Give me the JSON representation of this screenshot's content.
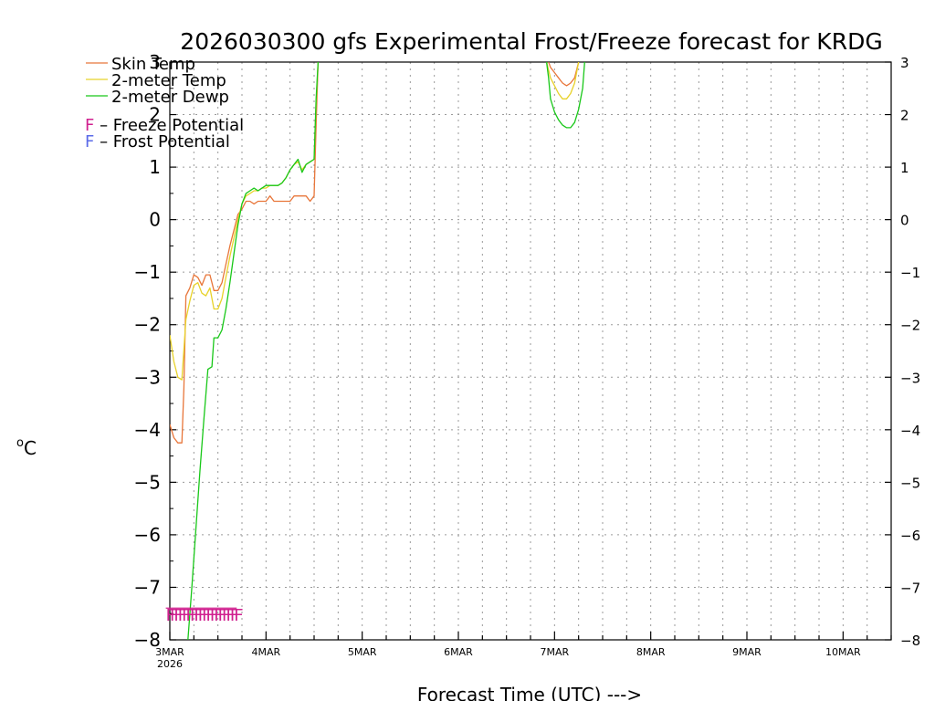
{
  "chart_data": {
    "type": "line",
    "title": "2026030300 gfs Experimental Frost/Freeze forecast for KRDG",
    "xlabel": "Forecast Time (UTC) --->",
    "ylabel": "°C",
    "ylabel_main": "C",
    "ylabel_degree": "o",
    "ylim": [
      -8,
      3
    ],
    "xlim": [
      0,
      180
    ],
    "yticks": [
      -8,
      -7,
      -6,
      -5,
      -4,
      -3,
      -2,
      -1,
      0,
      1,
      2,
      3
    ],
    "ytick_labels": [
      "−8",
      "−7",
      "−6",
      "−5",
      "−4",
      "−3",
      "−2",
      "−1",
      "0",
      "1",
      "2",
      "3"
    ],
    "xticks": [
      {
        "hour": 0,
        "label": "3MAR",
        "sublabel": "2026"
      },
      {
        "hour": 24,
        "label": "4MAR"
      },
      {
        "hour": 48,
        "label": "5MAR"
      },
      {
        "hour": 72,
        "label": "6MAR"
      },
      {
        "hour": 96,
        "label": "7MAR"
      },
      {
        "hour": 120,
        "label": "8MAR"
      },
      {
        "hour": 144,
        "label": "9MAR"
      },
      {
        "hour": 168,
        "label": "10MAR"
      }
    ],
    "grid": true,
    "series": [
      {
        "name": "Skin Temp",
        "color": "#e8763a",
        "segments": [
          [
            [
              0,
              -3.9
            ],
            [
              1,
              -4.15
            ],
            [
              2,
              -4.25
            ],
            [
              3,
              -4.25
            ],
            [
              3.5,
              -3.2
            ],
            [
              4,
              -1.45
            ],
            [
              5,
              -1.3
            ],
            [
              6,
              -1.05
            ],
            [
              7,
              -1.1
            ],
            [
              8,
              -1.25
            ],
            [
              9,
              -1.05
            ],
            [
              10,
              -1.05
            ],
            [
              11,
              -1.35
            ],
            [
              12,
              -1.35
            ],
            [
              13,
              -1.2
            ],
            [
              14,
              -0.85
            ],
            [
              15,
              -0.5
            ],
            [
              16,
              -0.2
            ],
            [
              17,
              0.1
            ],
            [
              18,
              0.2
            ],
            [
              19,
              0.35
            ],
            [
              20,
              0.35
            ],
            [
              21,
              0.3
            ],
            [
              22,
              0.35
            ],
            [
              23,
              0.35
            ],
            [
              24,
              0.35
            ],
            [
              25,
              0.45
            ],
            [
              26,
              0.35
            ],
            [
              27,
              0.35
            ],
            [
              28,
              0.35
            ],
            [
              29,
              0.35
            ],
            [
              30,
              0.35
            ],
            [
              31,
              0.45
            ],
            [
              32,
              0.45
            ],
            [
              33,
              0.45
            ],
            [
              34,
              0.45
            ],
            [
              35,
              0.35
            ],
            [
              36,
              0.45
            ],
            [
              36.5,
              1.8
            ],
            [
              37,
              3.0
            ]
          ],
          [
            [
              94.5,
              3.0
            ],
            [
              95,
              2.9
            ],
            [
              96,
              2.8
            ],
            [
              97,
              2.7
            ],
            [
              98,
              2.6
            ],
            [
              99,
              2.55
            ],
            [
              100,
              2.6
            ],
            [
              101,
              2.7
            ],
            [
              102,
              3.0
            ]
          ]
        ]
      },
      {
        "name": "2-meter Temp",
        "color": "#e8d22a",
        "segments": [
          [
            [
              0,
              -2.2
            ],
            [
              1,
              -2.7
            ],
            [
              2,
              -3.0
            ],
            [
              3,
              -3.05
            ],
            [
              4,
              -1.9
            ],
            [
              5,
              -1.55
            ],
            [
              6,
              -1.25
            ],
            [
              7,
              -1.2
            ],
            [
              8,
              -1.4
            ],
            [
              9,
              -1.45
            ],
            [
              10,
              -1.3
            ],
            [
              11,
              -1.7
            ],
            [
              12,
              -1.7
            ],
            [
              13,
              -1.5
            ],
            [
              14,
              -1.1
            ],
            [
              15,
              -0.7
            ],
            [
              16,
              -0.35
            ],
            [
              17,
              0.0
            ],
            [
              18,
              0.3
            ],
            [
              19,
              0.45
            ],
            [
              20,
              0.5
            ],
            [
              21,
              0.55
            ],
            [
              22,
              0.55
            ],
            [
              23,
              0.6
            ],
            [
              24,
              0.6
            ],
            [
              25,
              0.65
            ],
            [
              26,
              0.65
            ],
            [
              27,
              0.65
            ],
            [
              28,
              0.7
            ],
            [
              29,
              0.8
            ],
            [
              30,
              0.95
            ],
            [
              31,
              1.05
            ],
            [
              32,
              1.1
            ],
            [
              33,
              0.95
            ],
            [
              34,
              1.05
            ],
            [
              35,
              1.1
            ],
            [
              36,
              1.15
            ],
            [
              36.5,
              2.2
            ],
            [
              37,
              3.0
            ]
          ],
          [
            [
              94,
              3.0
            ],
            [
              94.5,
              2.85
            ],
            [
              95,
              2.7
            ],
            [
              96,
              2.55
            ],
            [
              97,
              2.4
            ],
            [
              98,
              2.3
            ],
            [
              99,
              2.3
            ],
            [
              100,
              2.4
            ],
            [
              101,
              2.6
            ],
            [
              102,
              3.0
            ]
          ]
        ]
      },
      {
        "name": "2-meter Dewp",
        "color": "#19c819",
        "segments": [
          [
            [
              4.5,
              -8.0
            ],
            [
              5.5,
              -7.0
            ],
            [
              6.5,
              -5.9
            ],
            [
              7.5,
              -4.8
            ],
            [
              8.5,
              -3.8
            ],
            [
              9.5,
              -2.85
            ],
            [
              10.5,
              -2.8
            ],
            [
              11,
              -2.25
            ],
            [
              12,
              -2.25
            ],
            [
              13,
              -2.1
            ],
            [
              14,
              -1.7
            ],
            [
              15,
              -1.2
            ],
            [
              16,
              -0.65
            ],
            [
              17,
              -0.1
            ],
            [
              18,
              0.3
            ],
            [
              19,
              0.5
            ],
            [
              20,
              0.55
            ],
            [
              21,
              0.6
            ],
            [
              22,
              0.55
            ],
            [
              23,
              0.6
            ],
            [
              24,
              0.65
            ],
            [
              25,
              0.65
            ],
            [
              26,
              0.65
            ],
            [
              27,
              0.65
            ],
            [
              28,
              0.7
            ],
            [
              29,
              0.8
            ],
            [
              30,
              0.95
            ],
            [
              31,
              1.05
            ],
            [
              32,
              1.15
            ],
            [
              33,
              0.9
            ],
            [
              34,
              1.05
            ],
            [
              35,
              1.1
            ],
            [
              36,
              1.15
            ],
            [
              36.5,
              2.3
            ],
            [
              37,
              3.0
            ]
          ],
          [
            [
              94,
              3.0
            ],
            [
              94.5,
              2.7
            ],
            [
              95,
              2.3
            ],
            [
              96,
              2.05
            ],
            [
              97,
              1.9
            ],
            [
              98,
              1.8
            ],
            [
              99,
              1.75
            ],
            [
              100,
              1.75
            ],
            [
              101,
              1.85
            ],
            [
              102,
              2.1
            ],
            [
              103,
              2.5
            ],
            [
              103.5,
              3.0
            ]
          ]
        ]
      }
    ],
    "freeze_marks": {
      "label": "F",
      "color": "#d0208f",
      "hours": [
        -1,
        0,
        1,
        2,
        3,
        4,
        5,
        6,
        7,
        8,
        9,
        10,
        11,
        12,
        13,
        14,
        15,
        16
      ],
      "y": -7.5
    },
    "legend": {
      "position": "top-left",
      "entries": [
        {
          "label": "Skin Temp",
          "color": "#e8763a"
        },
        {
          "label": "2-meter Temp",
          "color": "#e8d22a"
        },
        {
          "label": "2-meter Dewp",
          "color": "#19c819"
        }
      ],
      "potential_entries": [
        {
          "letter": "F",
          "text": " – Freeze Potential",
          "color": "#d0208f"
        },
        {
          "letter": "F",
          "text": " – Frost Potential",
          "color": "#5a6ae8"
        }
      ]
    }
  }
}
